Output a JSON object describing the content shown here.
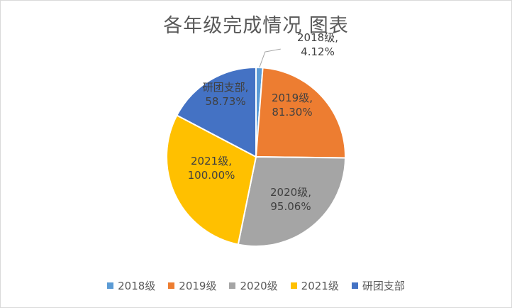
{
  "chart_data": {
    "type": "pie",
    "title": "各年级完成情况 图表",
    "categories": [
      "2018级",
      "2019级",
      "2020级",
      "2021级",
      "研团支部"
    ],
    "values": [
      4.12,
      81.3,
      95.06,
      100.0,
      58.73
    ],
    "data_labels": [
      "2018级,\n4.12%",
      "2019级,\n81.30%",
      "2020级,\n95.06%",
      "2021级,\n100.00%",
      "研团支部,\n58.73%"
    ],
    "colors": [
      "#5b9bd5",
      "#ed7d31",
      "#a5a5a5",
      "#ffc000",
      "#4472c4"
    ],
    "legend_position": "bottom",
    "start_angle": "12 o'clock",
    "direction": "clockwise"
  }
}
